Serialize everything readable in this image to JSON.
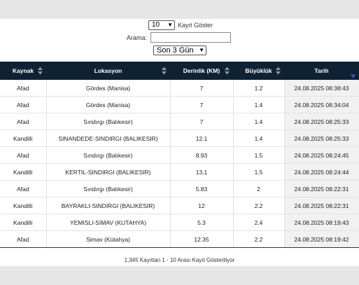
{
  "controls": {
    "length_value": "10",
    "length_label": "Kayıt Göster",
    "search_label": "Arama:",
    "search_value": "",
    "period_value": "Son 3 Gün"
  },
  "table": {
    "columns": [
      "Kaynak",
      "Lokasyon",
      "Derinlik (KM)",
      "Büyüklük",
      "Tarih"
    ],
    "rows": [
      [
        "Afad",
        "Gördes (Manisa)",
        "7",
        "1.2",
        "24.08.2025 08:38:43"
      ],
      [
        "Afad",
        "Gördes (Manisa)",
        "7",
        "1.4",
        "24.08.2025 08:34:04"
      ],
      [
        "Afad",
        "Sındırgı (Balıkesir)",
        "7",
        "1.4",
        "24.08.2025 08:25:33"
      ],
      [
        "Kandilli",
        "SINANDEDE-SINDIRGI (BALIKESIR)",
        "12.1",
        "1.4",
        "24.08.2025 08:25:33"
      ],
      [
        "Afad",
        "Sındırgı (Balıkesir)",
        "8.93",
        "1.5",
        "24.08.2025 08:24:45"
      ],
      [
        "Kandilli",
        "KERTIL-SINDIRGI (BALIKESIR)",
        "13.1",
        "1.5",
        "24.08.2025 08:24:44"
      ],
      [
        "Afad",
        "Sındırgı (Balıkesir)",
        "5.83",
        "2",
        "24.08.2025 08:22:31"
      ],
      [
        "Kandilli",
        "BAYRAKLI-SINDIRGI (BALIKESIR)",
        "12",
        "2.2",
        "24.08.2025 08:22:31"
      ],
      [
        "Kandilli",
        "YEMISLI-SIMAV (KUTAHYA)",
        "5.3",
        "2.4",
        "24.08.2025 08:19:43"
      ],
      [
        "Afad",
        "Simav (Kütahya)",
        "12.35",
        "2.2",
        "24.08.2025 08:19:42"
      ]
    ]
  },
  "info_text": "1,345 Kayıttan 1 - 10 Arası Kayıt Gösteriliyor",
  "colors": {
    "header_bg": "#0f2233",
    "sort_active": "#3b5bdb"
  }
}
